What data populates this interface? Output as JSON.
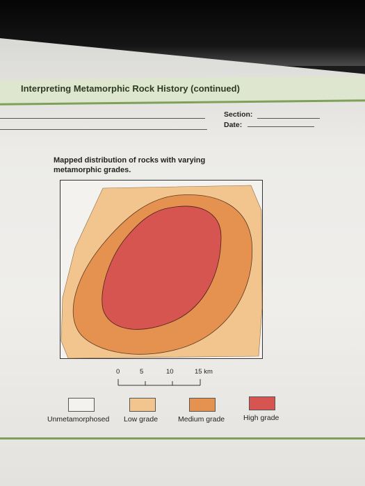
{
  "header": {
    "title": "Interpreting Metamorphic Rock History (continued)"
  },
  "form": {
    "section_label": "Section:",
    "date_label": "Date:"
  },
  "map": {
    "caption": "Mapped distribution of rocks with varying metamorphic grades.",
    "scale_bar": {
      "ticks": [
        "0",
        "5",
        "10"
      ],
      "end_label": "15 km"
    },
    "zones": [
      {
        "grade": "Low grade",
        "color": "#f2c48e"
      },
      {
        "grade": "Medium grade",
        "color": "#e59250"
      },
      {
        "grade": "High grade",
        "color": "#d75551"
      }
    ]
  },
  "legend": {
    "items": [
      {
        "label": "Unmetamorphosed",
        "color": "#f3f2ee"
      },
      {
        "label": "Low grade",
        "color": "#f2c48e"
      },
      {
        "label": "Medium grade",
        "color": "#e59250"
      },
      {
        "label": "High grade",
        "color": "#d75551"
      }
    ]
  }
}
